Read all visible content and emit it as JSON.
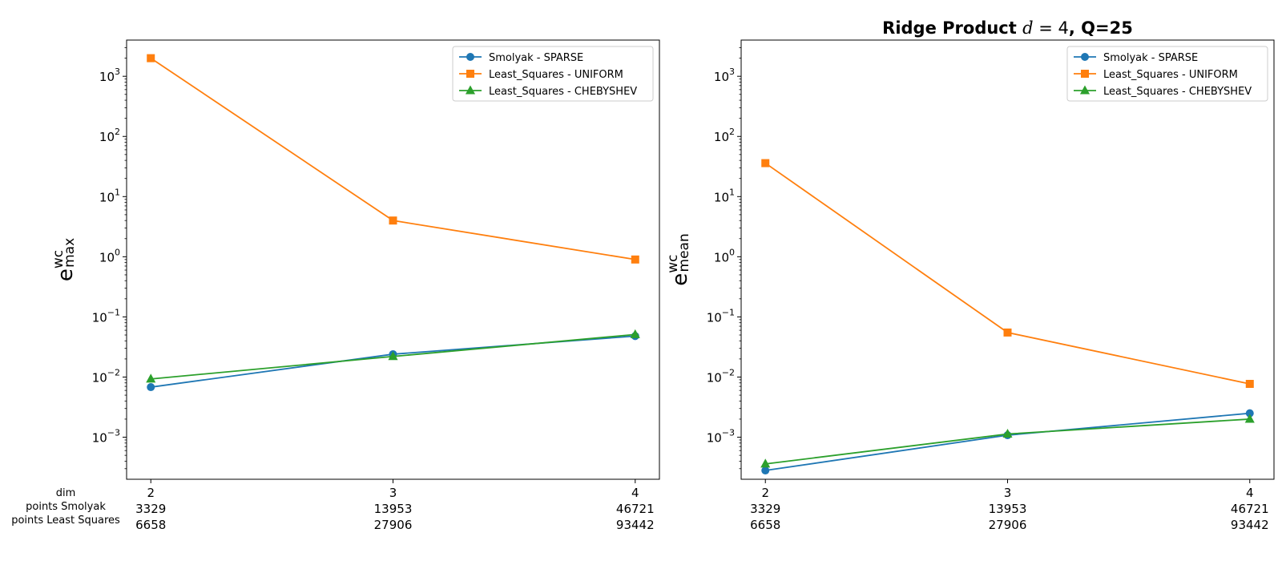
{
  "chart_data": [
    {
      "type": "line",
      "title": "",
      "ylabel": {
        "base": "e",
        "sup": "wc",
        "sub": "max"
      },
      "yscale": "log",
      "ylim": [
        0.0002,
        4000
      ],
      "yticks": [
        {
          "value": 0.001,
          "base": "10",
          "exp": "−3"
        },
        {
          "value": 0.01,
          "base": "10",
          "exp": "−2"
        },
        {
          "value": 0.1,
          "base": "10",
          "exp": "−1"
        },
        {
          "value": 1,
          "base": "10",
          "exp": "0"
        },
        {
          "value": 10,
          "base": "10",
          "exp": "1"
        },
        {
          "value": 100,
          "base": "10",
          "exp": "2"
        },
        {
          "value": 1000,
          "base": "10",
          "exp": "3"
        }
      ],
      "x": [
        2,
        3,
        4
      ],
      "xlim": [
        1.9,
        4.1
      ],
      "xtick_rows": [
        [
          "2",
          "3",
          "4"
        ],
        [
          "3329",
          "13953",
          "46721"
        ],
        [
          "6658",
          "27906",
          "93442"
        ]
      ],
      "row_headers": [
        "dim",
        "points Smolyak",
        "points Least Squares"
      ],
      "legend_loc": "upper right",
      "grid": false,
      "series": [
        {
          "name": "Smolyak - SPARSE",
          "color": "#1f77b4",
          "marker": "circle",
          "values": [
            0.0068,
            0.024,
            0.048
          ]
        },
        {
          "name": "Least_Squares - UNIFORM",
          "color": "#ff7f0e",
          "marker": "square",
          "values": [
            2000,
            4.0,
            0.9
          ]
        },
        {
          "name": "Least_Squares - CHEBYSHEV",
          "color": "#2ca02c",
          "marker": "triangle",
          "values": [
            0.0093,
            0.022,
            0.051
          ]
        }
      ]
    },
    {
      "type": "line",
      "title": "Ridge Product d = 4, Q=25",
      "title_parts": {
        "pre": "Ridge Product ",
        "var": "d",
        "eq": " = 4",
        "post": ", Q=25"
      },
      "ylabel": {
        "base": "e",
        "sup": "wc",
        "sub": "mean"
      },
      "yscale": "log",
      "ylim": [
        0.0002,
        4000
      ],
      "yticks": [
        {
          "value": 0.001,
          "base": "10",
          "exp": "−3"
        },
        {
          "value": 0.01,
          "base": "10",
          "exp": "−2"
        },
        {
          "value": 0.1,
          "base": "10",
          "exp": "−1"
        },
        {
          "value": 1,
          "base": "10",
          "exp": "0"
        },
        {
          "value": 10,
          "base": "10",
          "exp": "1"
        },
        {
          "value": 100,
          "base": "10",
          "exp": "2"
        },
        {
          "value": 1000,
          "base": "10",
          "exp": "3"
        }
      ],
      "x": [
        2,
        3,
        4
      ],
      "xlim": [
        1.9,
        4.1
      ],
      "xtick_rows": [
        [
          "2",
          "3",
          "4"
        ],
        [
          "3329",
          "13953",
          "46721"
        ],
        [
          "6658",
          "27906",
          "93442"
        ]
      ],
      "row_headers": [],
      "legend_loc": "upper right",
      "grid": false,
      "series": [
        {
          "name": "Smolyak - SPARSE",
          "color": "#1f77b4",
          "marker": "circle",
          "values": [
            0.00028,
            0.00108,
            0.0025
          ]
        },
        {
          "name": "Least_Squares - UNIFORM",
          "color": "#ff7f0e",
          "marker": "square",
          "values": [
            36,
            0.055,
            0.0077
          ]
        },
        {
          "name": "Least_Squares - CHEBYSHEV",
          "color": "#2ca02c",
          "marker": "triangle",
          "values": [
            0.00036,
            0.00113,
            0.002
          ]
        }
      ]
    }
  ]
}
